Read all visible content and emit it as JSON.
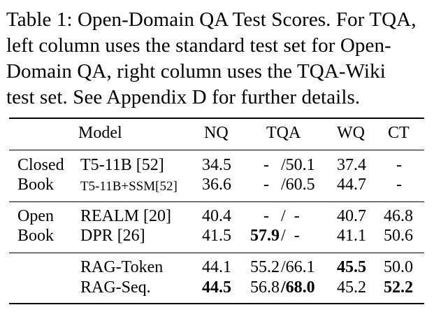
{
  "caption": {
    "lines": [
      "Table 1: Open-Domain QA Test Scores. For TQA,",
      "left column uses the standard test set for Open-",
      "Domain QA, right column uses the TQA-Wiki",
      "test set. See Appendix D for further details."
    ]
  },
  "table": {
    "headers": {
      "model": "Model",
      "nq": "NQ",
      "tqa": "TQA",
      "wq": "WQ",
      "ct": "CT"
    },
    "groups": [
      {
        "label_lines": [
          "Closed",
          "Book"
        ],
        "rows": [
          {
            "model": "T5-11B [52]",
            "nq": "34.5",
            "tqa_left": "-",
            "tqa_right": "/50.1",
            "wq": "37.4",
            "ct": "-"
          },
          {
            "model": "T5-11B+SSM[52]",
            "nq": "36.6",
            "tqa_left": "-",
            "tqa_right": "/60.5",
            "wq": "44.7",
            "ct": "-"
          }
        ]
      },
      {
        "label_lines": [
          "Open",
          "Book"
        ],
        "rows": [
          {
            "model": "REALM [20]",
            "nq": "40.4",
            "tqa_left": "-",
            "tqa_right": "/  -",
            "wq": "40.7",
            "ct": "46.8"
          },
          {
            "model": "DPR [26]",
            "nq": "41.5",
            "tqa_left": "57.9",
            "tqa_right": "/  -",
            "wq": "41.1",
            "ct": "50.6"
          }
        ]
      },
      {
        "label_lines": [],
        "rows": [
          {
            "model": "RAG-Token",
            "nq": "44.1",
            "tqa_left": "55.2",
            "tqa_right": "/66.1",
            "wq": "45.5",
            "ct": "50.0"
          },
          {
            "model": "RAG-Seq.",
            "nq": "44.5",
            "tqa_left": "56.8",
            "tqa_right": "/68.0",
            "wq": "45.2",
            "ct": "52.2"
          }
        ]
      }
    ]
  }
}
